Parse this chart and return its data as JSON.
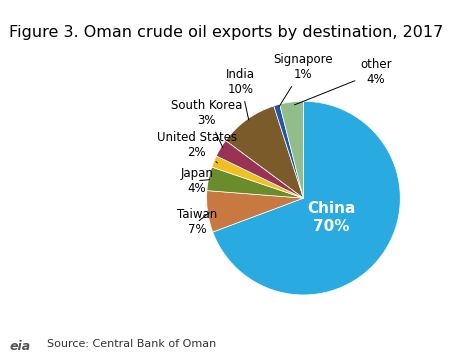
{
  "title": "Figure 3. Oman crude oil exports by destination, 2017",
  "source": "Source: Central Bank of Oman",
  "labels": [
    "China",
    "Taiwan",
    "Japan",
    "United States",
    "South Korea",
    "India",
    "Signapore",
    "other"
  ],
  "values": [
    70,
    7,
    4,
    2,
    3,
    10,
    1,
    4
  ],
  "colors": [
    "#29ABE2",
    "#C87941",
    "#6B8C2A",
    "#F0C020",
    "#993355",
    "#7B5B2A",
    "#2255AA",
    "#92BC8A"
  ],
  "start_angle": 90,
  "background_color": "#ffffff",
  "title_fontsize": 11.5,
  "label_fontsize": 8.5,
  "china_label_fontsize": 11
}
